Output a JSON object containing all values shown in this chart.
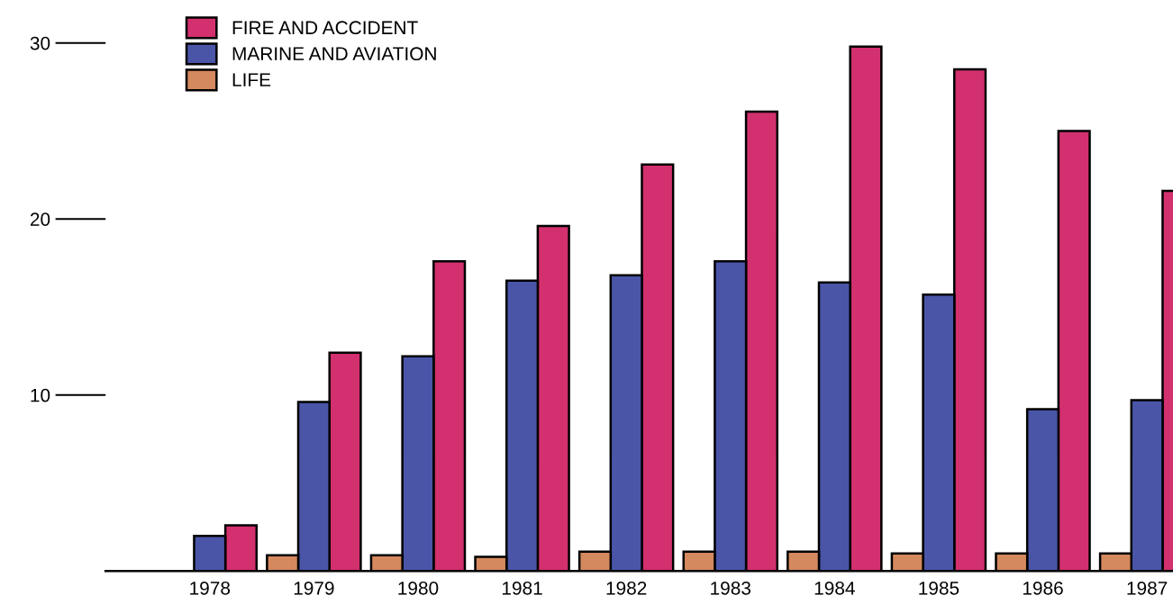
{
  "chart_data": {
    "type": "bar",
    "categories": [
      "1978",
      "1979",
      "1980",
      "1981",
      "1982",
      "1983",
      "1984",
      "1985",
      "1986",
      "1987"
    ],
    "series": [
      {
        "name": "FIRE AND ACCIDENT",
        "color": "#d2306e",
        "values": [
          2.6,
          12.4,
          17.6,
          19.6,
          23.1,
          26.1,
          29.8,
          28.5,
          25.0,
          21.6
        ]
      },
      {
        "name": "MARINE AND AVIATION",
        "color": "#4a55a8",
        "values": [
          2.0,
          9.6,
          12.2,
          16.5,
          16.8,
          17.6,
          16.4,
          15.7,
          9.2,
          9.7
        ]
      },
      {
        "name": "LIFE",
        "color": "#d4895e",
        "values": [
          null,
          0.9,
          0.9,
          0.8,
          1.1,
          1.1,
          1.1,
          1.0,
          1.0,
          1.0
        ]
      }
    ],
    "ylim": [
      0,
      30
    ],
    "yticks": [
      10,
      20,
      30
    ],
    "grid": false,
    "legend": "top left"
  }
}
